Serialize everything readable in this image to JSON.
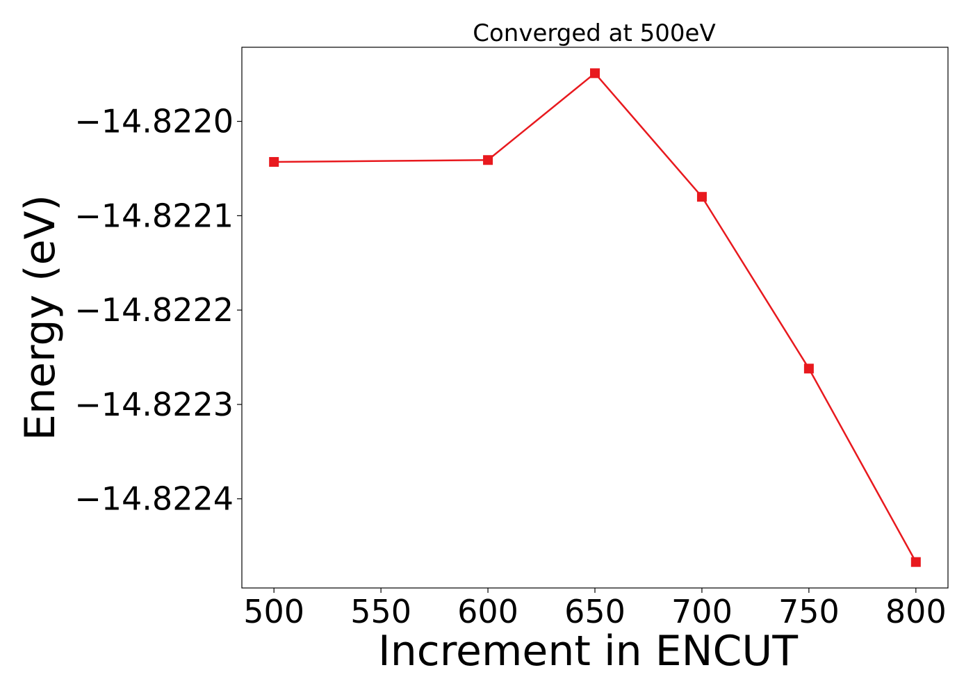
{
  "chart_data": {
    "type": "line",
    "title": "Converged at 500eV",
    "xlabel": "Increment in ENCUT",
    "ylabel": "Energy (eV)",
    "x": [
      500,
      600,
      650,
      700,
      750,
      800
    ],
    "series": [
      {
        "values": [
          -14.822043,
          -14.822041,
          -14.821949,
          -14.82208,
          -14.822262,
          -14.822467
        ],
        "color": "#e8191e",
        "marker": "square"
      }
    ],
    "xticks": [
      500,
      550,
      600,
      650,
      700,
      750,
      800
    ],
    "xtick_labels": [
      "500",
      "550",
      "600",
      "650",
      "700",
      "750",
      "800"
    ],
    "yticks": [
      -14.822,
      -14.8221,
      -14.8222,
      -14.8223,
      -14.8224
    ],
    "ytick_labels": [
      "−14.8220",
      "−14.8221",
      "−14.8222",
      "−14.8223",
      "−14.8224"
    ],
    "xlim": [
      485,
      815
    ],
    "ylim": [
      -14.8224945,
      -14.8219215
    ],
    "grid": false,
    "legend": "none"
  }
}
